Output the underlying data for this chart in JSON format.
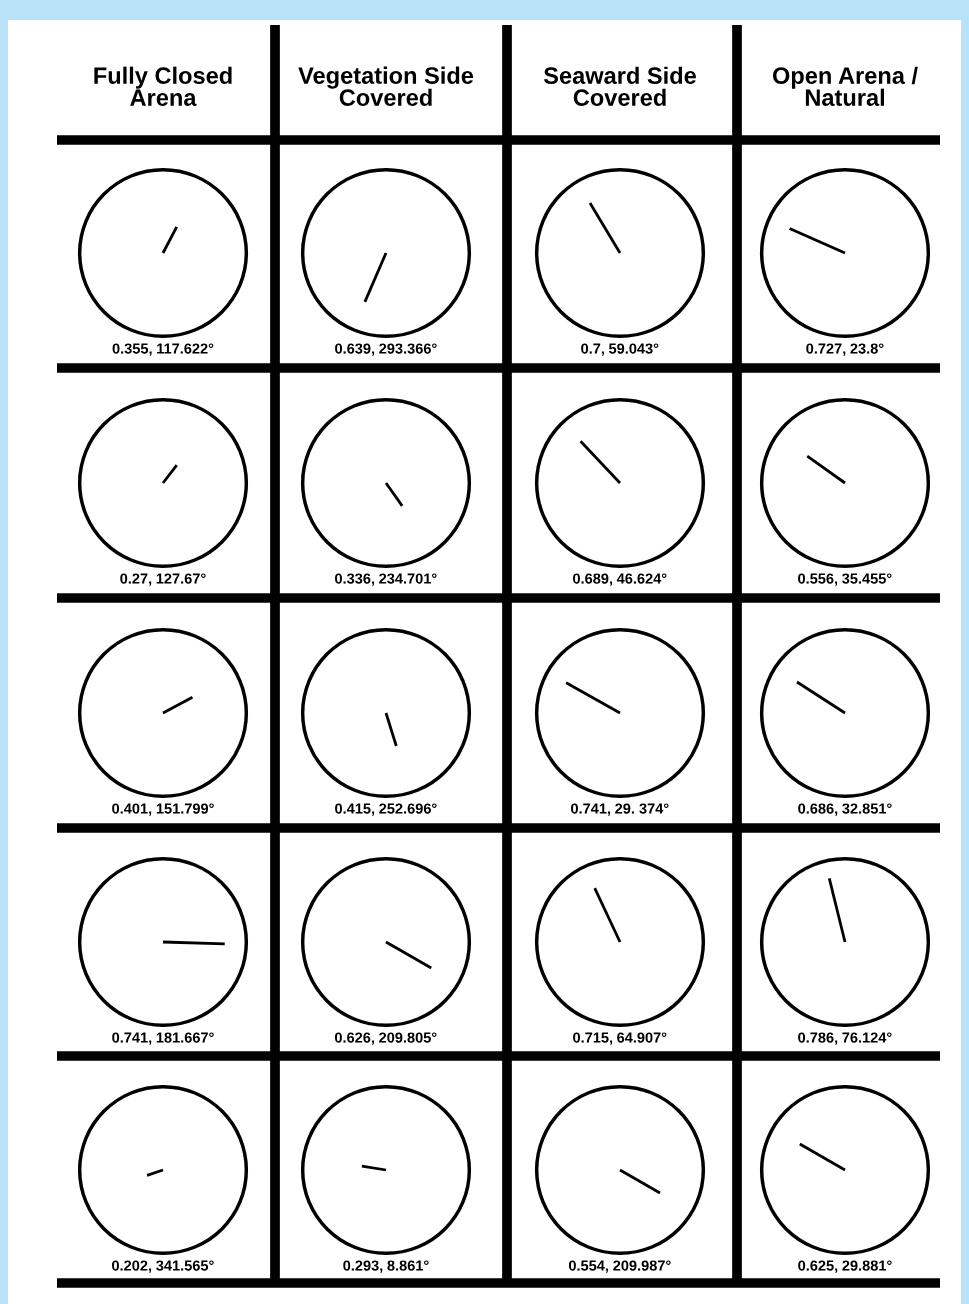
{
  "chart_data": [
    {
      "type": "other",
      "title": "Fully Closed\nArena",
      "values": [
        0.355,
        117.622
      ],
      "value_labels": [
        "0.355,",
        "117.622°"
      ]
    },
    {
      "type": "other",
      "title": "Vegetation Side\nCovered",
      "values": [
        0.639,
        293.366
      ],
      "value_labels": [
        "0.639,",
        "293.366°"
      ]
    },
    {
      "type": "other",
      "title": "Seaward Side\nCovered",
      "values": [
        0.7,
        59.043
      ],
      "value_labels": [
        "0.7,",
        "59.043°"
      ]
    },
    {
      "type": "other",
      "title": "Open Arena /\nNatural",
      "values": [
        0.727,
        23.8
      ],
      "value_labels": [
        "0.727,",
        "23.8°"
      ]
    },
    {
      "type": "other",
      "values": [
        0.27,
        127.67
      ],
      "value_labels": [
        "0.27,",
        "127.67°"
      ]
    },
    {
      "type": "other",
      "values": [
        0.336,
        234.701
      ],
      "value_labels": [
        "0.336,",
        "234.701°"
      ]
    },
    {
      "type": "other",
      "values": [
        0.689,
        46.624
      ],
      "value_labels": [
        "0.689,",
        "46.624°"
      ]
    },
    {
      "type": "other",
      "values": [
        0.556,
        35.455
      ],
      "value_labels": [
        "0.556,",
        "35.455°"
      ]
    },
    {
      "type": "other",
      "values": [
        0.401,
        151.799
      ],
      "value_labels": [
        "0.401,",
        "151.799°"
      ]
    },
    {
      "type": "other",
      "values": [
        0.415,
        252.696
      ],
      "value_labels": [
        "0.415,",
        "252.696°"
      ]
    },
    {
      "type": "other",
      "values": [
        0.741,
        29.374
      ],
      "value_labels": [
        "0.741,",
        "29. 374°"
      ]
    },
    {
      "type": "other",
      "values": [
        0.686,
        32.851
      ],
      "value_labels": [
        "0.686,",
        "32.851°"
      ]
    },
    {
      "type": "other",
      "values": [
        0.741,
        181.667
      ],
      "value_labels": [
        "0.741,",
        "181.667°"
      ]
    },
    {
      "type": "other",
      "values": [
        0.626,
        209.805
      ],
      "value_labels": [
        "0.626,",
        "209.805°"
      ]
    },
    {
      "type": "other",
      "values": [
        0.715,
        64.907
      ],
      "value_labels": [
        "0.715,",
        "64.907°"
      ]
    },
    {
      "type": "other",
      "values": [
        0.786,
        76.124
      ],
      "value_labels": [
        "0.786,",
        "76.124°"
      ]
    },
    {
      "type": "other",
      "values": [
        0.202,
        341.565
      ],
      "value_labels": [
        "0.202,",
        "341.565°"
      ]
    },
    {
      "type": "other",
      "values": [
        0.293,
        8.861
      ],
      "value_labels": [
        "0.293,",
        "8.861°"
      ]
    },
    {
      "type": "other",
      "values": [
        0.554,
        209.987
      ],
      "value_labels": [
        "0.554,",
        "209.987°"
      ]
    },
    {
      "type": "other",
      "values": [
        0.625,
        29.881
      ],
      "value_labels": [
        "0.625,",
        "29.881°"
      ]
    }
  ]
}
